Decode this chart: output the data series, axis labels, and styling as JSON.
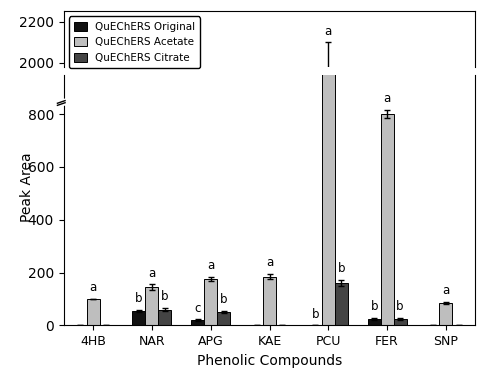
{
  "categories": [
    "4HB",
    "NAR",
    "APG",
    "KAE",
    "PCU",
    "FER",
    "SNP"
  ],
  "original": [
    0,
    55,
    20,
    0,
    0,
    25,
    0
  ],
  "acetate": [
    100,
    145,
    175,
    185,
    1950,
    800,
    85
  ],
  "citrate": [
    0,
    60,
    50,
    0,
    160,
    25,
    0
  ],
  "original_err": [
    0,
    5,
    3,
    0,
    0,
    4,
    0
  ],
  "acetate_err": [
    0,
    10,
    8,
    10,
    150,
    15,
    5
  ],
  "citrate_err": [
    0,
    5,
    4,
    0,
    12,
    3,
    0
  ],
  "original_labels": [
    "",
    "b",
    "c",
    "",
    "b",
    "b",
    ""
  ],
  "acetate_labels": [
    "a",
    "a",
    "a",
    "a",
    "a",
    "a",
    "a"
  ],
  "citrate_labels": [
    "",
    "b",
    "b",
    "",
    "b",
    "b",
    ""
  ],
  "color_original": "#111111",
  "color_acetate": "#bebebe",
  "color_citrate": "#444444",
  "legend_labels": [
    "QuEChERS Original",
    "QuEChERS Acetate",
    "QuEChERS Citrate"
  ],
  "xlabel": "Phenolic Compounds",
  "ylabel": "Peak Area",
  "bar_width": 0.22,
  "figsize": [
    4.9,
    3.74
  ],
  "dpi": 100
}
